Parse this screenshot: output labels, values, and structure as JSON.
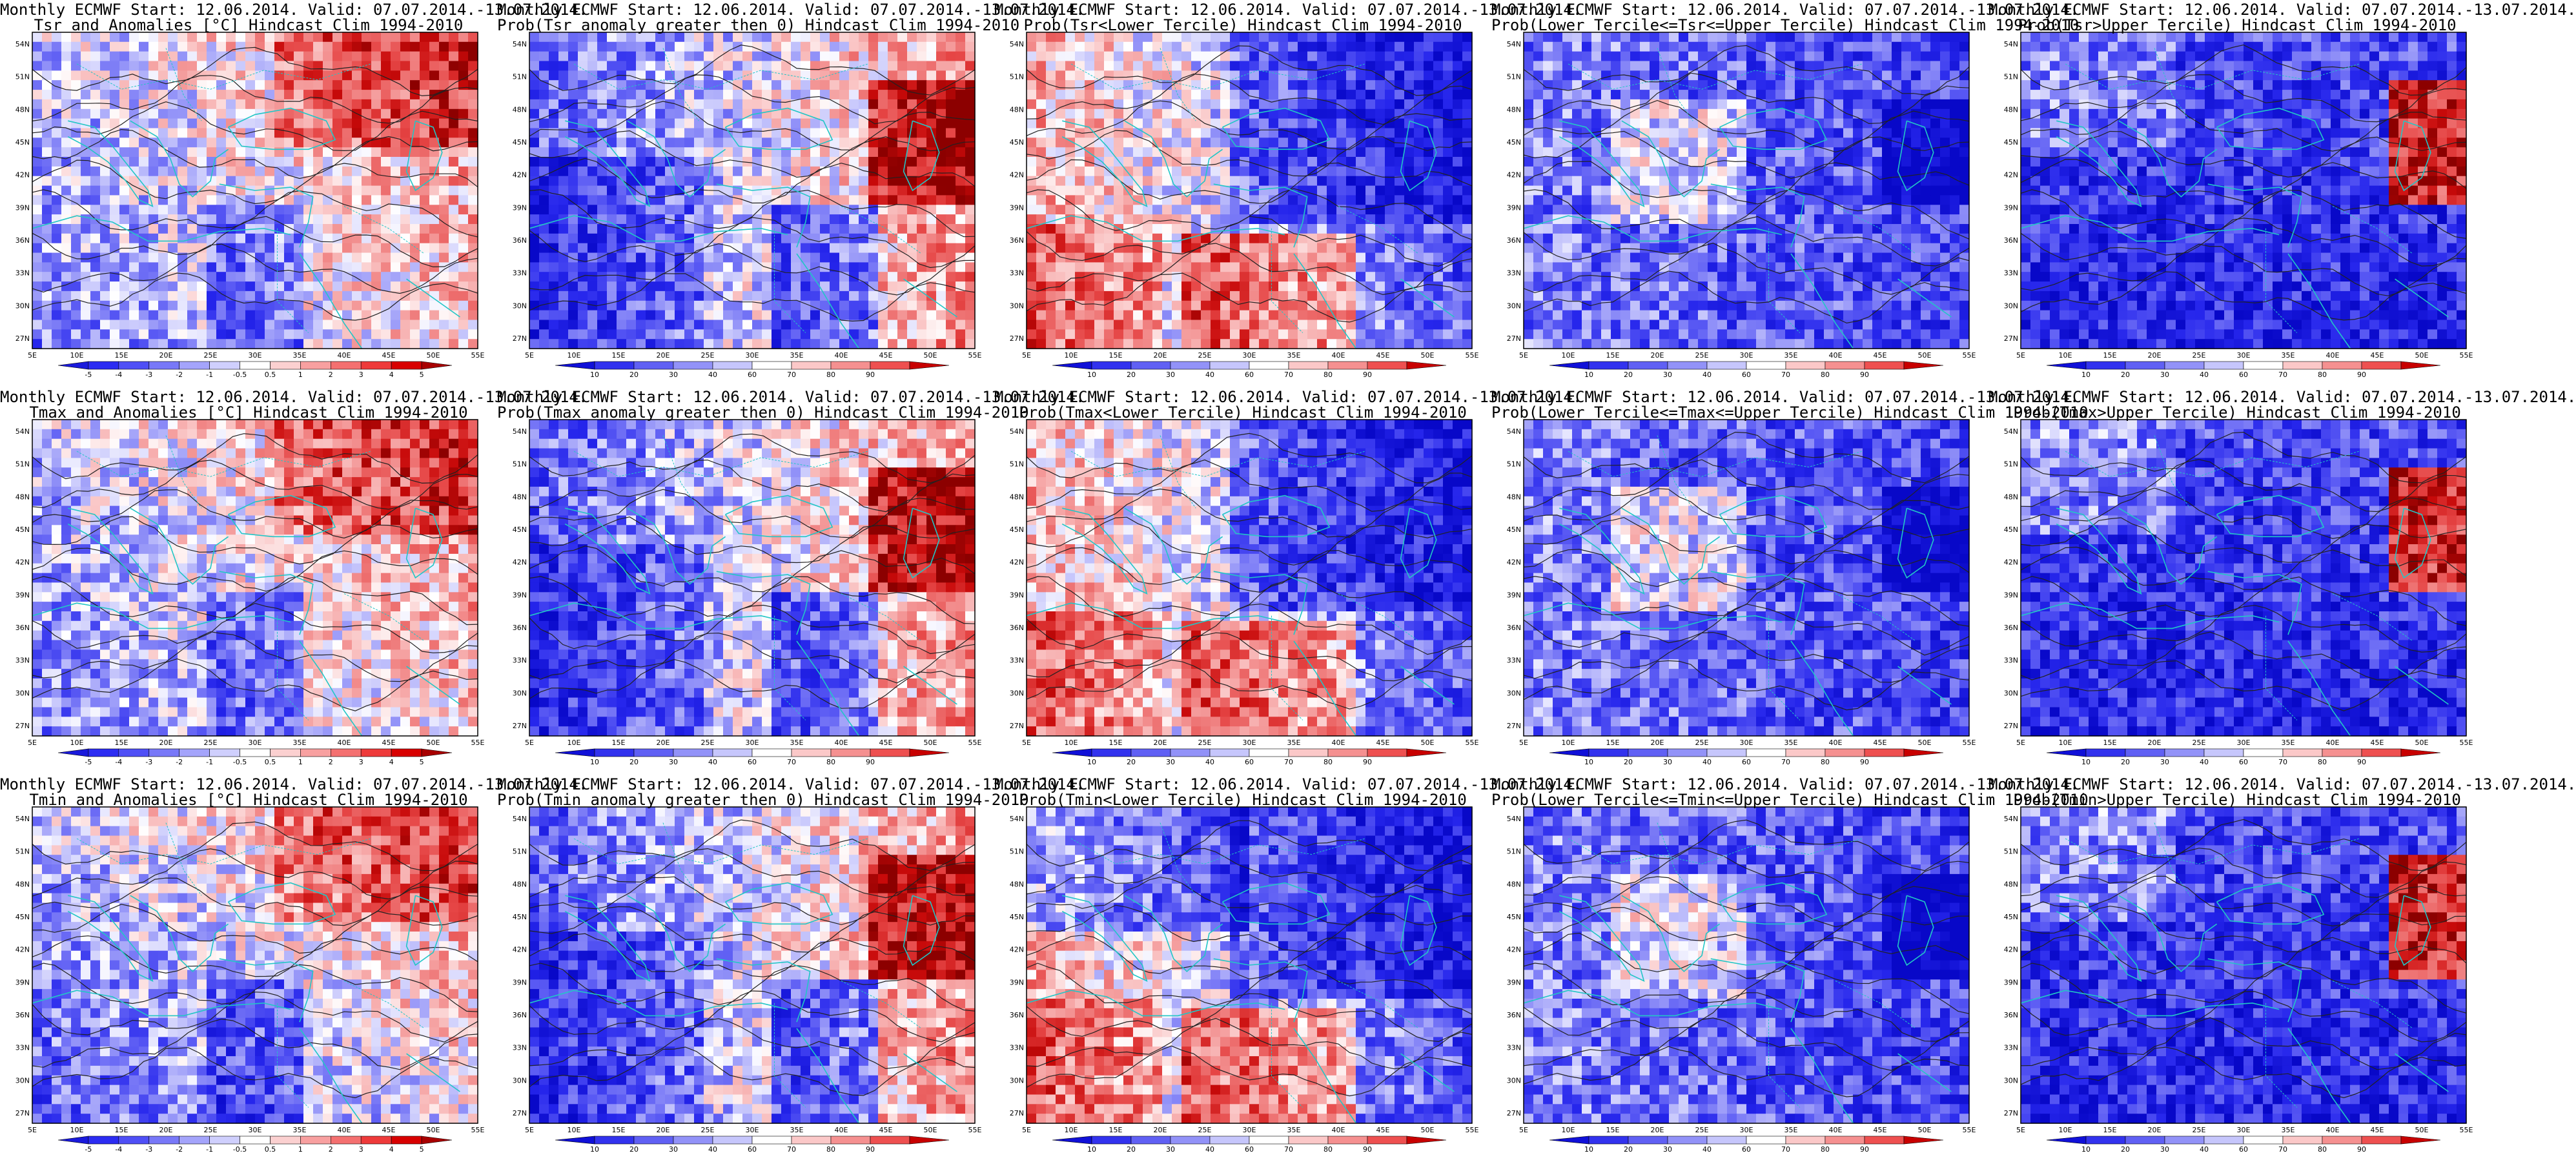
{
  "figure": {
    "rows": [
      {
        "variable": "Tsr",
        "panels": [
          {
            "title_line1": "Monthly ECMWF Start: 12.06.2014. Valid: 07.07.2014.-13.07.2014.",
            "title_line2": "Tsr and Anomalies [°C] Hindcast Clim 1994-2010",
            "kind": "anomaly"
          },
          {
            "title_line1": "Monthly ECMWF Start: 12.06.2014. Valid: 07.07.2014.-13.07.2014.",
            "title_line2": "Prob(Tsr anomaly greater then 0) Hindcast Clim 1994-2010",
            "kind": "prob_pos"
          },
          {
            "title_line1": "Monthly ECMWF Start: 12.06.2014. Valid: 07.07.2014.-13.07.2014.",
            "title_line2": "Prob(Tsr<Lower Tercile) Hindcast Clim 1994-2010",
            "kind": "prob_lower"
          },
          {
            "title_line1": "Monthly ECMWF Start: 12.06.2014. Valid: 07.07.2014.-13.07.2014.",
            "title_line2": "Prob(Lower Tercile<=Tsr<=Upper Tercile) Hindcast Clim 1994-2010",
            "kind": "prob_middle"
          },
          {
            "title_line1": "Monthly ECMWF Start: 12.06.2014. Valid: 07.07.2014.-13.07.2014.",
            "title_line2": "Prob(Tsr>Upper Tercile) Hindcast Clim 1994-2010",
            "kind": "prob_upper"
          }
        ]
      },
      {
        "variable": "Tmax",
        "panels": [
          {
            "title_line1": "Monthly ECMWF Start: 12.06.2014. Valid: 07.07.2014.-13.07.2014.",
            "title_line2": "Tmax and Anomalies [°C] Hindcast Clim 1994-2010",
            "kind": "anomaly"
          },
          {
            "title_line1": "Monthly ECMWF Start: 12.06.2014. Valid: 07.07.2014.-13.07.2014.",
            "title_line2": "Prob(Tmax anomaly greater then 0) Hindcast Clim 1994-2010",
            "kind": "prob_pos"
          },
          {
            "title_line1": "Monthly ECMWF Start: 12.06.2014. Valid: 07.07.2014.-13.07.2014.",
            "title_line2": "Prob(Tmax<Lower Tercile) Hindcast Clim 1994-2010",
            "kind": "prob_lower"
          },
          {
            "title_line1": "Monthly ECMWF Start: 12.06.2014. Valid: 07.07.2014.-13.07.2014.",
            "title_line2": "Prob(Lower Tercile<=Tmax<=Upper Tercile) Hindcast Clim 1994-2010",
            "kind": "prob_middle"
          },
          {
            "title_line1": "Monthly ECMWF Start: 12.06.2014. Valid: 07.07.2014.-13.07.2014.",
            "title_line2": "Prob(Tmax>Upper Tercile) Hindcast Clim 1994-2010",
            "kind": "prob_upper"
          }
        ]
      },
      {
        "variable": "Tmin",
        "panels": [
          {
            "title_line1": "Monthly ECMWF Start: 12.06.2014. Valid: 07.07.2014.-13.07.2014.",
            "title_line2": "Tmin and Anomalies [°C] Hindcast Clim 1994-2010",
            "kind": "anomaly"
          },
          {
            "title_line1": "Monthly ECMWF Start: 12.06.2014. Valid: 07.07.2014.-13.07.2014.",
            "title_line2": "Prob(Tmin anomaly greater then 0) Hindcast Clim 1994-2010",
            "kind": "prob_pos"
          },
          {
            "title_line1": "Monthly ECMWF Start: 12.06.2014. Valid: 07.07.2014.-13.07.2014.",
            "title_line2": "Prob(Tmin<Lower Tercile) Hindcast Clim 1994-2010",
            "kind": "prob_lower"
          },
          {
            "title_line1": "Monthly ECMWF Start: 12.06.2014. Valid: 07.07.2014.-13.07.2014.",
            "title_line2": "Prob(Lower Tercile<=Tmin<=Upper Tercile) Hindcast Clim 1994-2010",
            "kind": "prob_middle"
          },
          {
            "title_line1": "Monthly ECMWF Start: 12.06.2014. Valid: 07.07.2014.-13.07.2014.",
            "title_line2": "Prob(Tmin>Upper Tercile) Hindcast Clim 1994-2010",
            "kind": "prob_upper"
          }
        ]
      }
    ]
  },
  "axes": {
    "lat_labels": [
      "54N",
      "51N",
      "48N",
      "45N",
      "42N",
      "39N",
      "36N",
      "33N",
      "30N",
      "27N"
    ],
    "lon_labels": [
      "5E",
      "10E",
      "15E",
      "20E",
      "25E",
      "30E",
      "35E",
      "40E",
      "45E",
      "50E",
      "55E"
    ]
  },
  "colorbars": {
    "anomaly": {
      "labels": [
        "-5",
        "-4",
        "-3",
        "-2",
        "-1",
        "-0.5",
        "0.5",
        "1",
        "2",
        "3",
        "4",
        "5"
      ],
      "colors": [
        "#1a1adc",
        "#2c2cf2",
        "#4f4ff6",
        "#7878f8",
        "#a4a4fb",
        "#cfcffd",
        "#ffffff",
        "#fbd0d0",
        "#f8a0a0",
        "#f47070",
        "#ee3a3a",
        "#d80000",
        "#a80000"
      ]
    },
    "probability": {
      "labels": [
        "10",
        "20",
        "30",
        "40",
        "60",
        "70",
        "80",
        "90"
      ],
      "colors": [
        "#1010d8",
        "#3232ee",
        "#6060f4",
        "#9292f8",
        "#c6c6fc",
        "#ffffff",
        "#fbc8c8",
        "#f59090",
        "#ee5050",
        "#c80000"
      ]
    }
  },
  "colors": {
    "coastline": "#22c6c6",
    "contour": "#222222",
    "frame": "#000000"
  }
}
